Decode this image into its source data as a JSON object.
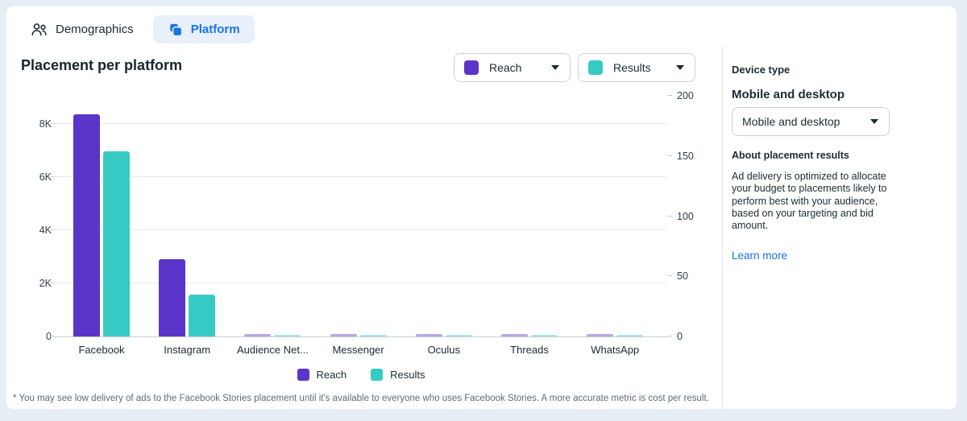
{
  "tabs": {
    "demographics": {
      "label": "Demographics"
    },
    "platform": {
      "label": "Platform"
    }
  },
  "header": {
    "title": "Placement per platform"
  },
  "metric_selectors": {
    "reach": {
      "label": "Reach",
      "color": "#5b35c9"
    },
    "results": {
      "label": "Results",
      "color": "#35cbc4"
    }
  },
  "chart_data": {
    "type": "bar",
    "title": "Placement per platform",
    "categories": [
      "Facebook",
      "Instagram",
      "Audience Net...",
      "Messenger",
      "Oculus",
      "Threads",
      "WhatsApp"
    ],
    "series": [
      {
        "name": "Reach",
        "axis": "left",
        "color": "#5b35c9",
        "color_small": "#b7a8e8",
        "values": [
          8350,
          2900,
          80,
          80,
          80,
          80,
          80
        ]
      },
      {
        "name": "Results",
        "axis": "right",
        "color": "#35cbc4",
        "color_small": "#a8e6e2",
        "values": [
          154,
          35,
          1,
          1,
          1,
          1,
          1
        ]
      }
    ],
    "left_axis": {
      "tick_labels": [
        "0",
        "2K",
        "4K",
        "6K",
        "8K"
      ],
      "tick_values": [
        0,
        2000,
        4000,
        6000,
        8000
      ],
      "range": [
        0,
        9200
      ]
    },
    "right_axis": {
      "tick_labels": [
        "0",
        "50",
        "100",
        "150",
        "200"
      ],
      "tick_values": [
        0,
        50,
        100,
        150,
        200
      ],
      "range": [
        0,
        204
      ]
    },
    "grid": true,
    "legend_position": "bottom"
  },
  "panel": {
    "device_type_label": "Device type",
    "subtitle": "Mobile and desktop",
    "dropdown_value": "Mobile and desktop",
    "about_heading": "About placement results",
    "about_text": "Ad delivery is optimized to allocate your budget to placements likely to perform best with your audience, based on your targeting and bid amount.",
    "learn_more": "Learn more"
  },
  "footnote": "* You may see low delivery of ads to the Facebook Stories placement until it's available to everyone who uses Facebook Stories. A more accurate metric is cost per result.",
  "colors": {
    "accent_blue": "#1b74e4",
    "tab_active_bg": "#e7f0fb",
    "reach_purple": "#5b35c9",
    "results_teal": "#35cbc4"
  }
}
